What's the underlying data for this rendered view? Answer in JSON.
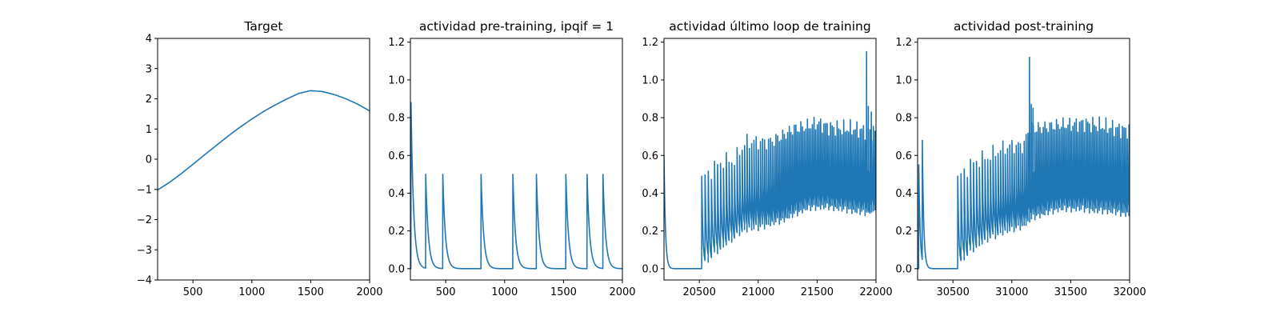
{
  "figure": {
    "background": "#ffffff"
  },
  "chart_data": [
    {
      "type": "line",
      "title": "Target",
      "xlabel": "",
      "ylabel": "",
      "xlim": [
        200,
        2000
      ],
      "ylim": [
        -4,
        4
      ],
      "xticks": [
        500,
        1000,
        1500,
        2000
      ],
      "yticks": [
        -4,
        -3,
        -2,
        -1,
        0,
        1,
        2,
        3,
        4
      ],
      "ytick_labels": [
        "−4",
        "−3",
        "−2",
        "−1",
        "0",
        "1",
        "2",
        "3",
        "4"
      ],
      "grid": false,
      "series": [
        {
          "color": "#1f77b4",
          "x": [
            200,
            300,
            400,
            500,
            600,
            700,
            800,
            900,
            1000,
            1100,
            1200,
            1300,
            1400,
            1500,
            1600,
            1700,
            1800,
            1900,
            2000
          ],
          "y": [
            -1.02,
            -0.77,
            -0.48,
            -0.17,
            0.15,
            0.46,
            0.77,
            1.06,
            1.33,
            1.58,
            1.8,
            2.0,
            2.18,
            2.27,
            2.24,
            2.14,
            2.0,
            1.82,
            1.6
          ]
        }
      ]
    },
    {
      "type": "line",
      "title": "actividad pre-training, ipqif = 1",
      "xlabel": "",
      "ylabel": "",
      "xlim": [
        200,
        2000
      ],
      "ylim": [
        -0.06,
        1.22
      ],
      "xticks": [
        500,
        1000,
        1500,
        2000
      ],
      "yticks": [
        0.0,
        0.2,
        0.4,
        0.6,
        0.8,
        1.0,
        1.2
      ],
      "ytick_labels": [
        "0.0",
        "0.2",
        "0.4",
        "0.6",
        "0.8",
        "1.0",
        "1.2"
      ],
      "grid": false,
      "spikes": [
        {
          "x": 205,
          "peak": 0.88
        },
        {
          "x": 330,
          "peak": 0.5
        },
        {
          "x": 475,
          "peak": 0.5
        },
        {
          "x": 800,
          "peak": 0.5
        },
        {
          "x": 1070,
          "peak": 0.5
        },
        {
          "x": 1270,
          "peak": 0.5
        },
        {
          "x": 1520,
          "peak": 0.5
        },
        {
          "x": 1700,
          "peak": 0.5
        },
        {
          "x": 1835,
          "peak": 0.5
        }
      ],
      "series": [
        {
          "color": "#1f77b4"
        }
      ]
    },
    {
      "type": "line",
      "title": "actividad último loop de training",
      "xlabel": "",
      "ylabel": "",
      "xlim": [
        20200,
        22000
      ],
      "ylim": [
        -0.06,
        1.22
      ],
      "xticks": [
        20500,
        21000,
        21500,
        22000
      ],
      "yticks": [
        0.0,
        0.2,
        0.4,
        0.6,
        0.8,
        1.0,
        1.2
      ],
      "ytick_labels": [
        "0.0",
        "0.2",
        "0.4",
        "0.6",
        "0.8",
        "1.0",
        "1.2"
      ],
      "grid": false,
      "osc_start": 20520,
      "envelope": {
        "x": [
          20520,
          20600,
          20700,
          20800,
          20850,
          20900,
          21000,
          21100,
          21200,
          21300,
          21400,
          21500,
          21600,
          21700,
          21800,
          21900,
          22000
        ],
        "max": [
          0.5,
          0.55,
          0.6,
          0.6,
          0.66,
          0.7,
          0.7,
          0.7,
          0.73,
          0.77,
          0.78,
          0.8,
          0.78,
          0.77,
          0.77,
          0.76,
          0.75
        ],
        "min": [
          0.0,
          0.05,
          0.1,
          0.15,
          0.18,
          0.19,
          0.2,
          0.22,
          0.24,
          0.27,
          0.3,
          0.31,
          0.31,
          0.3,
          0.29,
          0.28,
          0.3
        ]
      },
      "peak_events": [
        {
          "x": 21920,
          "y": 1.15
        },
        {
          "x": 21935,
          "y": 0.86
        },
        {
          "x": 21960,
          "y": 0.83
        }
      ],
      "series": [
        {
          "color": "#1f77b4"
        }
      ]
    },
    {
      "type": "line",
      "title": "actividad post-training",
      "xlabel": "",
      "ylabel": "",
      "xlim": [
        30200,
        32000
      ],
      "ylim": [
        -0.06,
        1.22
      ],
      "xticks": [
        30500,
        31000,
        31500,
        32000
      ],
      "yticks": [
        0.0,
        0.2,
        0.4,
        0.6,
        0.8,
        1.0,
        1.2
      ],
      "ytick_labels": [
        "0.0",
        "0.2",
        "0.4",
        "0.6",
        "0.8",
        "1.0",
        "1.2"
      ],
      "grid": false,
      "osc_start": 30540,
      "envelope": {
        "x": [
          30540,
          30600,
          30700,
          30800,
          30900,
          31000,
          31100,
          31150,
          31200,
          31300,
          31400,
          31500,
          31600,
          31700,
          31800,
          31900,
          32000
        ],
        "max": [
          0.5,
          0.55,
          0.6,
          0.62,
          0.66,
          0.68,
          0.68,
          0.78,
          0.77,
          0.78,
          0.79,
          0.79,
          0.8,
          0.79,
          0.78,
          0.77,
          0.76
        ],
        "min": [
          0.0,
          0.05,
          0.1,
          0.14,
          0.17,
          0.19,
          0.21,
          0.24,
          0.26,
          0.28,
          0.3,
          0.3,
          0.3,
          0.29,
          0.29,
          0.28,
          0.27
        ]
      },
      "pre_spikes": [
        {
          "x": 30210,
          "peak": 0.55
        },
        {
          "x": 30240,
          "peak": 0.68
        }
      ],
      "peak_events": [
        {
          "x": 31150,
          "y": 1.12
        },
        {
          "x": 31165,
          "y": 0.87
        },
        {
          "x": 31180,
          "y": 0.85
        }
      ],
      "series": [
        {
          "color": "#1f77b4"
        }
      ]
    }
  ]
}
